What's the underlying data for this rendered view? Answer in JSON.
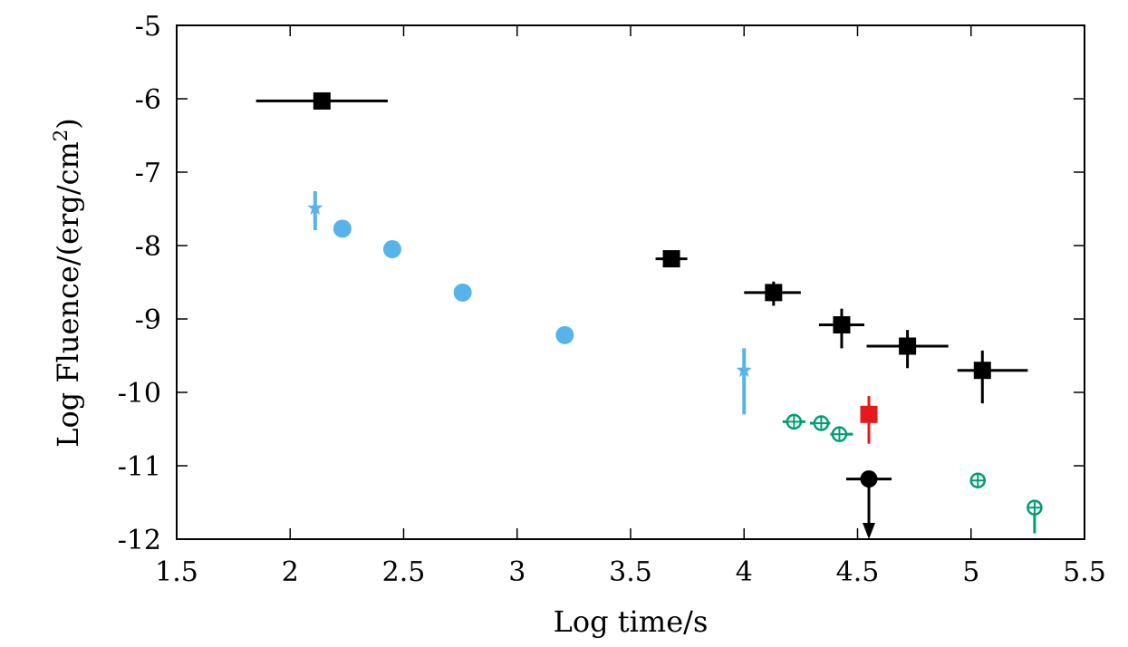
{
  "chart_data": {
    "type": "scatter",
    "xlabel": "Log time/s",
    "ylabel": "Log Fluence/(erg/cm",
    "ylabel_superscript": "2",
    "ylabel_close": ")",
    "xlim": [
      1.5,
      5.5
    ],
    "ylim": [
      -12,
      -5
    ],
    "xticks": [
      1.5,
      2,
      2.5,
      3,
      3.5,
      4,
      4.5,
      5,
      5.5
    ],
    "xtick_labels": [
      "1.5",
      "2",
      "2.5",
      "3",
      "3.5",
      "4",
      "4.5",
      "5",
      "5.5"
    ],
    "yticks": [
      -12,
      -11,
      -10,
      -9,
      -8,
      -7,
      -6,
      -5
    ],
    "ytick_labels": [
      "-12",
      "-11",
      "-10",
      "-9",
      "-8",
      "-7",
      "-6",
      "-5"
    ],
    "grid": false,
    "series": [
      {
        "marker": "square",
        "color": "#000000",
        "points": [
          {
            "x": 2.14,
            "y": -6.03,
            "xerr": [
              0.29,
              0.29
            ],
            "yerr": [
              0,
              0
            ]
          },
          {
            "x": 3.68,
            "y": -8.18,
            "xerr": [
              0.07,
              0.07
            ],
            "yerr": [
              0,
              0
            ]
          },
          {
            "x": 4.13,
            "y": -8.64,
            "xerr": [
              0.13,
              0.12
            ],
            "yerr": [
              0.18,
              0.15
            ]
          },
          {
            "x": 4.43,
            "y": -9.08,
            "xerr": [
              0.1,
              0.1
            ],
            "yerr": [
              0.32,
              0.22
            ]
          },
          {
            "x": 4.72,
            "y": -9.37,
            "xerr": [
              0.18,
              0.18
            ],
            "yerr": [
              0.3,
              0.22
            ]
          },
          {
            "x": 5.05,
            "y": -9.7,
            "xerr": [
              0.11,
              0.2
            ],
            "yerr": [
              0.45,
              0.27
            ]
          }
        ]
      },
      {
        "marker": "circle",
        "color": "#56b4e9",
        "points": [
          {
            "x": 2.23,
            "y": -7.77
          },
          {
            "x": 2.45,
            "y": -8.05
          },
          {
            "x": 2.76,
            "y": -8.64
          },
          {
            "x": 3.21,
            "y": -9.22
          }
        ]
      },
      {
        "marker": "star",
        "color": "#56b4e9",
        "points": [
          {
            "x": 2.11,
            "y": -7.49,
            "yerr": [
              0.3,
              0.23
            ]
          },
          {
            "x": 4.0,
            "y": -9.7,
            "yerr": [
              0.6,
              0.3
            ]
          }
        ]
      },
      {
        "marker": "circled-plus",
        "color": "#009e73",
        "points": [
          {
            "x": 4.22,
            "y": -10.4,
            "xerr": [
              0.05,
              0.05
            ],
            "yerr": [
              0,
              0
            ]
          },
          {
            "x": 4.34,
            "y": -10.42,
            "xerr": [
              0.05,
              0.04
            ],
            "yerr": [
              0,
              0
            ]
          },
          {
            "x": 4.42,
            "y": -10.57,
            "xerr": [
              0.04,
              0.06
            ],
            "yerr": [
              0,
              0
            ]
          },
          {
            "x": 5.03,
            "y": -11.2,
            "xerr": [
              0,
              0
            ],
            "yerr": [
              0,
              0
            ]
          },
          {
            "x": 5.28,
            "y": -11.57,
            "xerr": [
              0,
              0
            ],
            "yerr": [
              0.35,
              0
            ]
          }
        ]
      },
      {
        "marker": "square",
        "color": "#e41a1c",
        "points": [
          {
            "x": 4.55,
            "y": -10.3,
            "xerr": [
              0,
              0
            ],
            "yerr": [
              0.4,
              0.25
            ]
          }
        ]
      },
      {
        "marker": "circle-upper-limit",
        "color": "#000000",
        "points": [
          {
            "x": 4.55,
            "y": -11.18,
            "xerr": [
              0.1,
              0.1
            ],
            "arrow_to": -12.0
          }
        ]
      }
    ]
  }
}
